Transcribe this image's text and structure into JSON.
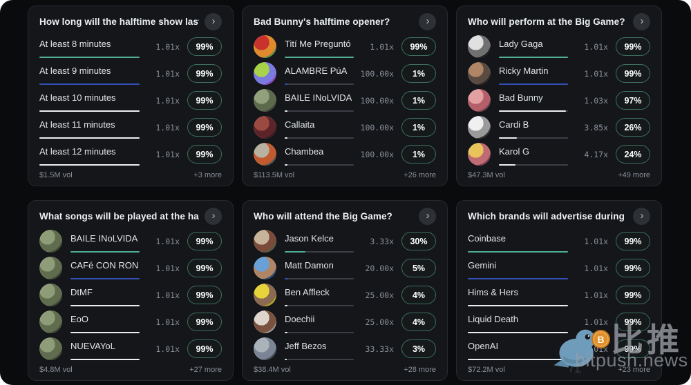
{
  "chevron_glyph": "›",
  "colors": {
    "teal": "#4fae94",
    "blue": "#3350b4",
    "white": "#edeff1",
    "bar_track": "#3b3f45",
    "pill_border": "#3e6f60",
    "card_bg": "#14161a",
    "page_bg": "#0a0b0d"
  },
  "watermark": {
    "brand_cn": "比推",
    "brand_domain": "bitpush.news",
    "coin_glyph": "B"
  },
  "cards": [
    {
      "title": "How long will the halftime show last?",
      "volume": "$1.5M vol",
      "more": "+3 more",
      "rows": [
        {
          "label": "At least 8 minutes",
          "multiplier": "1.01x",
          "percent": "99%",
          "bar": 99,
          "bar_color": "teal"
        },
        {
          "label": "At least 9 minutes",
          "multiplier": "1.01x",
          "percent": "99%",
          "bar": 99,
          "bar_color": "blue"
        },
        {
          "label": "At least 10 minutes",
          "multiplier": "1.01x",
          "percent": "99%",
          "bar": 99,
          "bar_color": "white"
        },
        {
          "label": "At least 11 minutes",
          "multiplier": "1.01x",
          "percent": "99%",
          "bar": 99,
          "bar_color": "white"
        },
        {
          "label": "At least 12 minutes",
          "multiplier": "1.01x",
          "percent": "99%",
          "bar": 99,
          "bar_color": "white"
        }
      ]
    },
    {
      "title": "Bad Bunny's halftime opener?",
      "volume": "$113.5M vol",
      "more": "+26 more",
      "rows": [
        {
          "label": "Tití Me Preguntó",
          "multiplier": "1.01x",
          "percent": "99%",
          "bar": 99,
          "bar_color": "teal",
          "avatar": [
            "#c8332e",
            "#e08a2e",
            "#5a8a46"
          ]
        },
        {
          "label": "ALAMBRE PúA",
          "multiplier": "100.00x",
          "percent": "1%",
          "bar": 1,
          "bar_color": "blue",
          "avatar": [
            "#a8d348",
            "#7a7ae0",
            "#8a40b8"
          ]
        },
        {
          "label": "BAILE INoLVIDA...",
          "multiplier": "100.00x",
          "percent": "1%",
          "bar": 1,
          "bar_color": "white",
          "avatar": [
            "#93a07c",
            "#5d6b4c",
            "#3c4734"
          ]
        },
        {
          "label": "Callaita",
          "multiplier": "100.00x",
          "percent": "1%",
          "bar": 1,
          "bar_color": "white",
          "avatar": [
            "#9a4a40",
            "#5c2428",
            "#38181c"
          ]
        },
        {
          "label": "Chambea",
          "multiplier": "100.00x",
          "percent": "1%",
          "bar": 1,
          "bar_color": "white",
          "avatar": [
            "#b8b0a0",
            "#c25a30",
            "#5a554e"
          ]
        }
      ]
    },
    {
      "title": "Who will perform at the Big Game?",
      "volume": "$47.3M vol",
      "more": "+49 more",
      "rows": [
        {
          "label": "Lady Gaga",
          "multiplier": "1.01x",
          "percent": "99%",
          "bar": 99,
          "bar_color": "teal",
          "avatar": [
            "#e0e0e0",
            "#707070",
            "#1a1a1a"
          ]
        },
        {
          "label": "Ricky Martin",
          "multiplier": "1.01x",
          "percent": "99%",
          "bar": 99,
          "bar_color": "blue",
          "avatar": [
            "#b08565",
            "#5a4a42",
            "#241f1e"
          ]
        },
        {
          "label": "Bad Bunny",
          "multiplier": "1.03x",
          "percent": "97%",
          "bar": 97,
          "bar_color": "white",
          "avatar": [
            "#e3a0a0",
            "#b55f6b",
            "#6e3a46"
          ]
        },
        {
          "label": "Cardi B",
          "multiplier": "3.85x",
          "percent": "26%",
          "bar": 26,
          "bar_color": "white",
          "avatar": [
            "#f0f0f0",
            "#9a9a9a",
            "#2a2a2a"
          ]
        },
        {
          "label": "Karol G",
          "multiplier": "4.17x",
          "percent": "24%",
          "bar": 24,
          "bar_color": "white",
          "avatar": [
            "#e8c45a",
            "#c06a72",
            "#7a3a55"
          ]
        }
      ]
    },
    {
      "title": "What songs will be played at the half-t...",
      "volume": "$4.8M vol",
      "more": "+27 more",
      "rows": [
        {
          "label": "BAILE INoLVIDABLE",
          "multiplier": "1.01x",
          "percent": "99%",
          "bar": 99,
          "bar_color": "teal",
          "avatar": [
            "#8e9c78",
            "#5f6d4e",
            "#39432f"
          ]
        },
        {
          "label": "CAFé CON RON",
          "multiplier": "1.01x",
          "percent": "99%",
          "bar": 99,
          "bar_color": "blue",
          "avatar": [
            "#8e9c78",
            "#5f6d4e",
            "#39432f"
          ]
        },
        {
          "label": "DtMF",
          "multiplier": "1.01x",
          "percent": "99%",
          "bar": 99,
          "bar_color": "white",
          "avatar": [
            "#8e9c78",
            "#5f6d4e",
            "#39432f"
          ]
        },
        {
          "label": "EoO",
          "multiplier": "1.01x",
          "percent": "99%",
          "bar": 99,
          "bar_color": "white",
          "avatar": [
            "#8e9c78",
            "#5f6d4e",
            "#39432f"
          ]
        },
        {
          "label": "NUEVAYoL",
          "multiplier": "1.01x",
          "percent": "99%",
          "bar": 99,
          "bar_color": "white",
          "avatar": [
            "#8e9c78",
            "#5f6d4e",
            "#39432f"
          ]
        }
      ]
    },
    {
      "title": "Who will attend the Big Game?",
      "volume": "$38.4M vol",
      "more": "+28 more",
      "rows": [
        {
          "label": "Jason Kelce",
          "multiplier": "3.33x",
          "percent": "30%",
          "bar": 30,
          "bar_color": "teal",
          "avatar": [
            "#c8b49a",
            "#7a4a3a",
            "#4a5a40"
          ]
        },
        {
          "label": "Matt Damon",
          "multiplier": "20.00x",
          "percent": "5%",
          "bar": 5,
          "bar_color": "blue",
          "avatar": [
            "#6aa0d8",
            "#b08565",
            "#2a4a78"
          ]
        },
        {
          "label": "Ben Affleck",
          "multiplier": "25.00x",
          "percent": "4%",
          "bar": 4,
          "bar_color": "white",
          "avatar": [
            "#e8d43a",
            "#8a6a50",
            "#b0a020"
          ]
        },
        {
          "label": "Doechii",
          "multiplier": "25.00x",
          "percent": "4%",
          "bar": 4,
          "bar_color": "white",
          "avatar": [
            "#ded6cc",
            "#7a5240",
            "#96908a"
          ]
        },
        {
          "label": "Jeff Bezos",
          "multiplier": "33.33x",
          "percent": "3%",
          "bar": 3,
          "bar_color": "white",
          "avatar": [
            "#aab2ba",
            "#7a8494",
            "#3e4650"
          ]
        }
      ]
    },
    {
      "title": "Which brands will advertise during the...",
      "volume": "$72.2M vol",
      "more": "+23 more",
      "rows": [
        {
          "label": "Coinbase",
          "multiplier": "1.01x",
          "percent": "99%",
          "bar": 99,
          "bar_color": "teal"
        },
        {
          "label": "Gemini",
          "multiplier": "1.01x",
          "percent": "99%",
          "bar": 99,
          "bar_color": "blue"
        },
        {
          "label": "Hims & Hers",
          "multiplier": "1.01x",
          "percent": "99%",
          "bar": 99,
          "bar_color": "white"
        },
        {
          "label": "Liquid Death",
          "multiplier": "1.01x",
          "percent": "99%",
          "bar": 99,
          "bar_color": "white"
        },
        {
          "label": "OpenAI",
          "multiplier": "1.01x",
          "percent": "99%",
          "bar": 99,
          "bar_color": "white"
        }
      ]
    }
  ]
}
